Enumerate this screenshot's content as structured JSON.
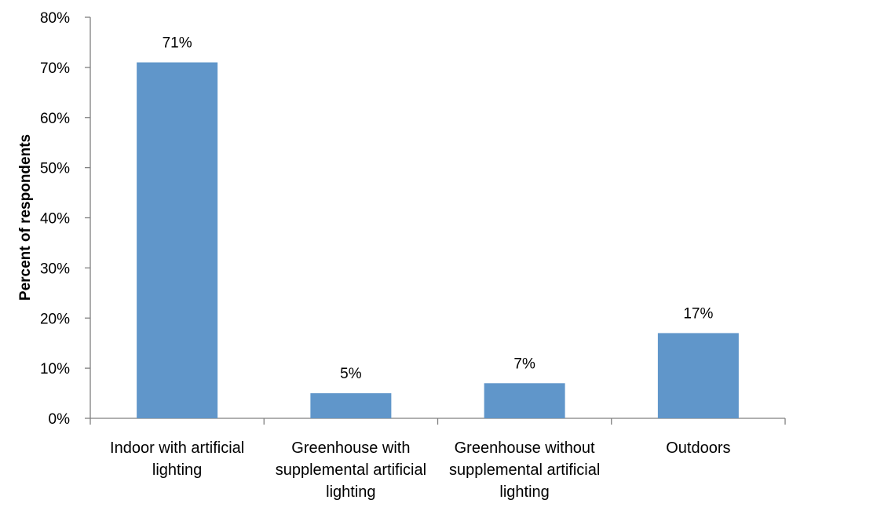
{
  "chart_data": {
    "type": "bar",
    "ylabel": "Percent of respondents",
    "xlabel": "",
    "categories": [
      [
        "Indoor with artificial",
        "lighting"
      ],
      [
        "Greenhouse with",
        "supplemental artificial",
        "lighting"
      ],
      [
        "Greenhouse without",
        "supplemental artificial",
        "lighting"
      ],
      [
        "Outdoors"
      ]
    ],
    "values": [
      71,
      5,
      7,
      17
    ],
    "data_labels": [
      "71%",
      "5%",
      "7%",
      "17%"
    ],
    "ylim": [
      0,
      80
    ],
    "yticks": [
      0,
      10,
      20,
      30,
      40,
      50,
      60,
      70,
      80
    ],
    "ytick_labels": [
      "0%",
      "10%",
      "20%",
      "30%",
      "40%",
      "50%",
      "60%",
      "70%",
      "80%"
    ],
    "grid": false,
    "legend": "none",
    "bar_color": "#6096CA",
    "axis_color": "#808080"
  }
}
